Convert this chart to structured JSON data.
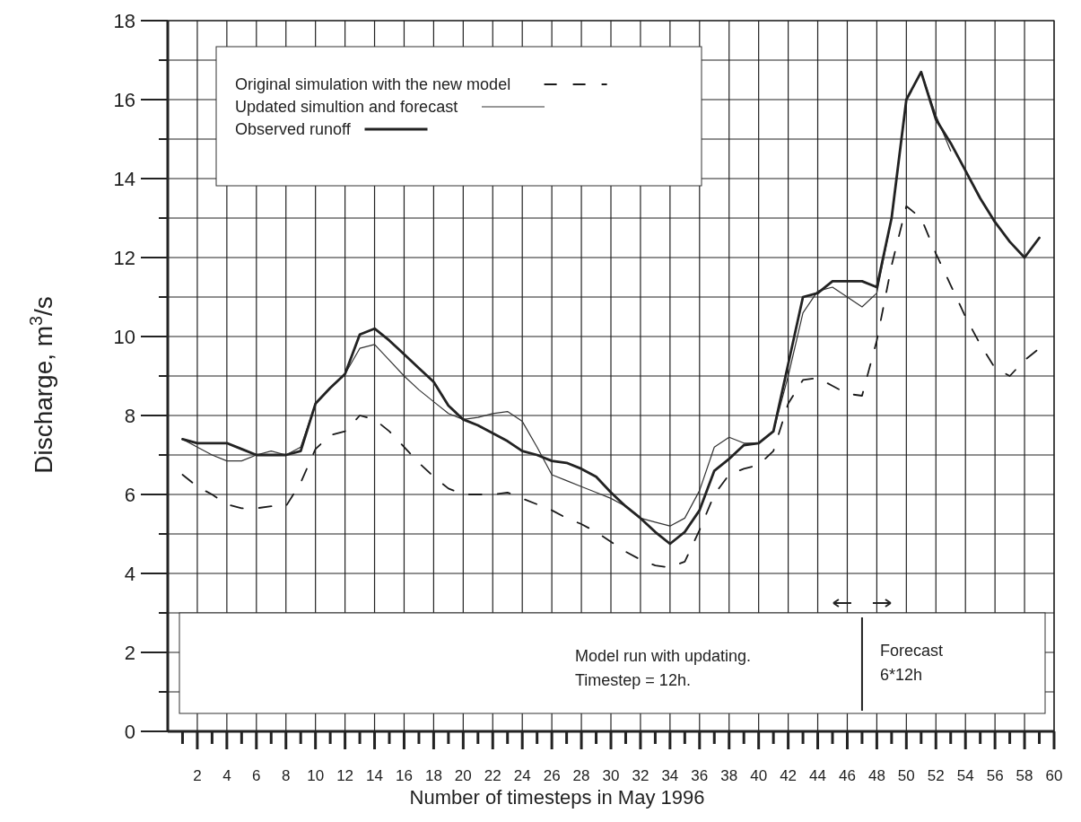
{
  "chart_data": {
    "type": "line",
    "xlabel": "Number of timesteps in May 1996",
    "ylabel": "Discharge, m$^{3}$/s",
    "x": [
      1,
      2,
      3,
      4,
      5,
      6,
      7,
      8,
      9,
      10,
      11,
      12,
      13,
      14,
      15,
      16,
      17,
      18,
      19,
      20,
      21,
      22,
      23,
      24,
      25,
      26,
      27,
      28,
      29,
      30,
      31,
      32,
      33,
      34,
      35,
      36,
      37,
      38,
      39,
      40,
      41,
      42,
      43,
      44,
      45,
      46,
      47,
      48,
      49,
      50,
      51,
      52,
      53,
      54,
      55,
      56,
      57,
      58,
      59
    ],
    "series": [
      {
        "name": "Original simulation with the new model",
        "color": "#1a1a1a",
        "line_style": "dashed",
        "values": [
          6.5,
          6.2,
          6.0,
          5.75,
          5.65,
          5.65,
          5.7,
          5.7,
          6.3,
          7.15,
          7.5,
          7.6,
          8.0,
          7.9,
          7.6,
          7.2,
          6.8,
          6.45,
          6.15,
          6.0,
          6.0,
          6.0,
          6.05,
          5.9,
          5.75,
          5.6,
          5.4,
          5.25,
          5.05,
          4.8,
          4.55,
          4.35,
          4.2,
          4.15,
          4.3,
          5.1,
          6.0,
          6.5,
          6.65,
          6.75,
          7.1,
          8.3,
          8.9,
          8.95,
          8.75,
          8.55,
          8.5,
          9.9,
          11.8,
          13.3,
          13.0,
          12.1,
          11.3,
          10.5,
          9.8,
          9.2,
          9.0,
          9.4,
          9.7
        ]
      },
      {
        "name": "Updated simultion and forecast",
        "color": "#333333",
        "line_style": "solid",
        "values": [
          7.4,
          7.2,
          7.0,
          6.85,
          6.85,
          7.0,
          7.1,
          7.0,
          7.2,
          8.3,
          8.7,
          9.05,
          9.7,
          9.8,
          9.4,
          9.0,
          8.65,
          8.35,
          8.05,
          7.9,
          7.95,
          8.05,
          8.1,
          7.85,
          7.2,
          6.5,
          6.35,
          6.2,
          6.05,
          5.9,
          5.7,
          5.4,
          5.3,
          5.2,
          5.4,
          6.1,
          7.2,
          7.45,
          7.3,
          7.3,
          7.6,
          9.0,
          10.6,
          11.15,
          11.25,
          11.0,
          10.75,
          11.1,
          13.0,
          16.0,
          16.7,
          15.6,
          14.7,
          null,
          null,
          null,
          null,
          null,
          null
        ]
      },
      {
        "name": "Observed runoff",
        "color": "#222222",
        "line_style": "solid",
        "values": [
          7.4,
          7.3,
          7.3,
          7.3,
          7.15,
          7.0,
          7.0,
          7.0,
          7.1,
          8.3,
          8.7,
          9.05,
          10.05,
          10.2,
          9.9,
          9.55,
          9.2,
          8.85,
          8.25,
          7.9,
          7.75,
          7.55,
          7.35,
          7.1,
          7.0,
          6.85,
          6.8,
          6.65,
          6.45,
          6.05,
          5.7,
          5.4,
          5.05,
          4.75,
          5.05,
          5.6,
          6.6,
          6.9,
          7.25,
          7.3,
          7.6,
          9.3,
          11.0,
          11.1,
          11.4,
          11.4,
          11.4,
          11.25,
          13.0,
          16.0,
          16.7,
          15.5,
          14.9,
          14.2,
          13.5,
          12.9,
          12.4,
          12.0,
          12.5
        ]
      }
    ],
    "xlim": [
      0,
      60
    ],
    "xticks": [
      {
        "value": 1,
        "label": null
      },
      2,
      {
        "value": 3,
        "label": null
      },
      4,
      {
        "value": 5,
        "label": null
      },
      6,
      {
        "value": 7,
        "label": null
      },
      8,
      {
        "value": 9,
        "label": null
      },
      10,
      {
        "value": 11,
        "label": null
      },
      12,
      {
        "value": 13,
        "label": null
      },
      14,
      {
        "value": 15,
        "label": null
      },
      16,
      {
        "value": 17,
        "label": null
      },
      18,
      {
        "value": 19,
        "label": null
      },
      20,
      {
        "value": 21,
        "label": null
      },
      22,
      {
        "value": 23,
        "label": null
      },
      24,
      {
        "value": 25,
        "label": null
      },
      26,
      {
        "value": 27,
        "label": null
      },
      28,
      {
        "value": 29,
        "label": null
      },
      30,
      {
        "value": 31,
        "label": null
      },
      32,
      {
        "value": 33,
        "label": null
      },
      34,
      {
        "value": 35,
        "label": null
      },
      36,
      {
        "value": 37,
        "label": null
      },
      38,
      {
        "value": 39,
        "label": null
      },
      40,
      {
        "value": 41,
        "label": null
      },
      42,
      {
        "value": 43,
        "label": null
      },
      44,
      {
        "value": 45,
        "label": null
      },
      46,
      {
        "value": 47,
        "label": null
      },
      48,
      {
        "value": 49,
        "label": null
      },
      50,
      {
        "value": 51,
        "label": null
      },
      52,
      {
        "value": 53,
        "label": null
      },
      54,
      {
        "value": 55,
        "label": null
      },
      56,
      {
        "value": 57,
        "label": null
      },
      58,
      {
        "value": 59,
        "label": null
      },
      60
    ],
    "ylim": [
      0,
      18
    ],
    "yticks": [
      0,
      {
        "value": 1,
        "label": null
      },
      2,
      {
        "value": 3,
        "label": null
      },
      4,
      {
        "value": 5,
        "label": null
      },
      6,
      {
        "value": 7,
        "label": null
      },
      8,
      {
        "value": 9,
        "label": null
      },
      10,
      {
        "value": 11,
        "label": null
      },
      12,
      {
        "value": 13,
        "label": null
      },
      14,
      {
        "value": 15,
        "label": null
      },
      16,
      {
        "value": 17,
        "label": null
      },
      18
    ],
    "grid": true,
    "legend": "top left",
    "marker": "none",
    "annotations": [
      "Model run with updating.\nTimestep = 12h.",
      "Forecast\n6*12h"
    ]
  }
}
